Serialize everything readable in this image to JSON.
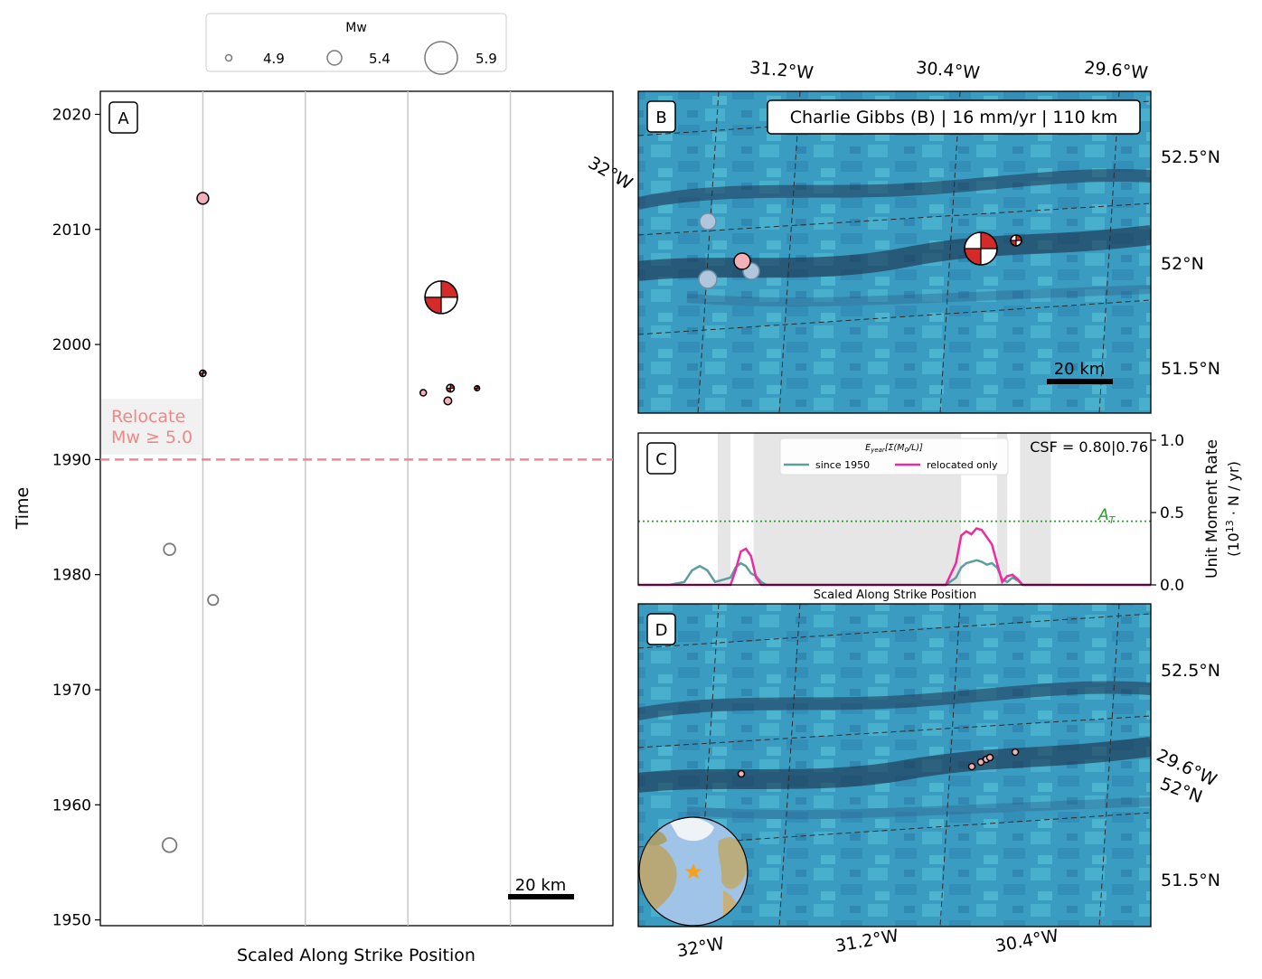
{
  "legend": {
    "title": "Mw",
    "entries": [
      {
        "label": "4.9",
        "mw": 4.9
      },
      {
        "label": "5.4",
        "mw": 5.4
      },
      {
        "label": "5.9",
        "mw": 5.9
      }
    ]
  },
  "panel_labels": {
    "a": "A",
    "b": "B",
    "c": "C",
    "d": "D"
  },
  "panel_a": {
    "ylabel": "Time",
    "xlabel": "Scaled Along Strike Position",
    "yticks": [
      "1950",
      "1960",
      "1970",
      "1980",
      "1990",
      "2000",
      "2010",
      "2020"
    ],
    "relocate_label_line1": "Relocate",
    "relocate_label_line2": "Mw ≥ 5.0",
    "scale_bar_label": "20 km"
  },
  "panel_b": {
    "title": "Charlie Gibbs (B) | 16 mm/yr | 110 km",
    "top_lon_labels": [
      "31.2°W",
      "30.4°W",
      "29.6°W"
    ],
    "left_lon_label": "32°W",
    "right_lat_labels": [
      "52.5°N",
      "52°N",
      "51.5°N"
    ],
    "scale_bar_label": "20 km"
  },
  "panel_c": {
    "csf_text": "CSF = 0.80|0.76",
    "legend_title": "E_year[Σ(M0/L)]",
    "legend_series": [
      "since 1950",
      "relocated only"
    ],
    "threshold_label": "A_T",
    "xlabel": "Scaled Along Strike Position",
    "ylabel_line1": "Unit Moment Rate",
    "ylabel_line2": "(10^13 · N / yr)",
    "yticks": [
      "0.0",
      "0.5",
      "1.0"
    ]
  },
  "panel_d": {
    "bottom_lon_labels": [
      "32°W",
      "31.2°W",
      "30.4°W"
    ],
    "right_lat_labels": [
      "52.5°N",
      "52°N",
      "51.5°N"
    ],
    "right_lon_label": "29.6°W"
  },
  "colors": {
    "relocated": "#f4b0b8",
    "historic": "#ffffff",
    "historic_edge": "#7a7a7a",
    "beachball": "#d42a2a",
    "threshold_line": "#ee8888",
    "since1950": "#5f9ea0",
    "relocated_only": "#ee2aa0",
    "threshold_green": "#2e9a2e"
  },
  "chart_data": [
    {
      "panel": "A",
      "type": "scatter",
      "xlabel": "Scaled Along Strike Position",
      "ylabel": "Time",
      "ylim": [
        1949.5,
        2022
      ],
      "xlim": [
        0,
        1
      ],
      "threshold_year": 1990,
      "events": [
        {
          "x": 0.2,
          "y": 2012.7,
          "mw": 5.1,
          "kind": "relocated"
        },
        {
          "x": 0.2,
          "y": 1997.5,
          "mw": 4.9,
          "kind": "mechanism"
        },
        {
          "x": 0.665,
          "y": 2004.1,
          "mw": 5.9,
          "kind": "mechanism"
        },
        {
          "x": 0.63,
          "y": 1995.8,
          "mw": 4.9,
          "kind": "relocated"
        },
        {
          "x": 0.678,
          "y": 1995.1,
          "mw": 4.95,
          "kind": "relocated"
        },
        {
          "x": 0.683,
          "y": 1996.2,
          "mw": 4.95,
          "kind": "mechanism"
        },
        {
          "x": 0.735,
          "y": 1996.2,
          "mw": 4.85,
          "kind": "mechanism"
        },
        {
          "x": 0.135,
          "y": 1982.2,
          "mw": 5.1,
          "kind": "historic"
        },
        {
          "x": 0.22,
          "y": 1977.8,
          "mw": 5.05,
          "kind": "historic"
        },
        {
          "x": 0.135,
          "y": 1956.5,
          "mw": 5.2,
          "kind": "historic"
        }
      ]
    },
    {
      "panel": "C",
      "type": "line",
      "xlim": [
        0,
        1
      ],
      "ylim": [
        0,
        1.05
      ],
      "threshold": 0.44,
      "csf": "0.80|0.76",
      "x": [
        0.0,
        0.06,
        0.09,
        0.105,
        0.12,
        0.135,
        0.15,
        0.18,
        0.19,
        0.2,
        0.21,
        0.22,
        0.23,
        0.24,
        0.25,
        0.26,
        0.3,
        0.6,
        0.62,
        0.63,
        0.64,
        0.65,
        0.66,
        0.67,
        0.68,
        0.69,
        0.7,
        0.71,
        0.72,
        0.73,
        0.74,
        0.75,
        0.76,
        1.0
      ],
      "series": [
        {
          "name": "since 1950",
          "values": [
            0,
            0,
            0.02,
            0.1,
            0.13,
            0.1,
            0.02,
            0.05,
            0.12,
            0.15,
            0.13,
            0.08,
            0.06,
            0.02,
            0,
            0,
            0,
            0,
            0.05,
            0.12,
            0.15,
            0.16,
            0.17,
            0.16,
            0.14,
            0.15,
            0.12,
            0.04,
            0.02,
            0.05,
            0.03,
            0,
            0,
            0
          ]
        },
        {
          "name": "relocated only",
          "values": [
            0,
            0,
            0,
            0,
            0,
            0,
            0,
            0,
            0.1,
            0.23,
            0.25,
            0.2,
            0.05,
            0,
            0,
            0,
            0,
            0,
            0.15,
            0.34,
            0.37,
            0.35,
            0.39,
            0.38,
            0.33,
            0.28,
            0.15,
            0.02,
            0.06,
            0.07,
            0.04,
            0,
            0,
            0
          ]
        }
      ],
      "shaded_bands": [
        [
          0.155,
          0.18
        ],
        [
          0.225,
          0.63
        ],
        [
          0.7,
          0.72
        ],
        [
          0.745,
          0.805
        ]
      ]
    }
  ]
}
